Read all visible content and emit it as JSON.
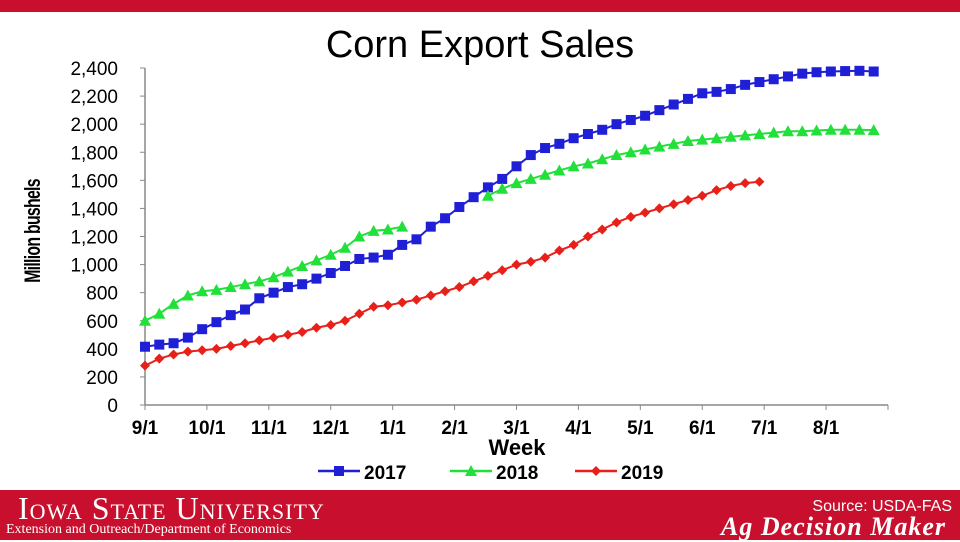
{
  "colors": {
    "bar": "#c8102e",
    "s2017": "#1f1fd6",
    "s2018": "#22e03a",
    "s2019": "#e8201a"
  },
  "footer": {
    "university": "Iowa State University",
    "department": "Extension and Outreach/Department of Economics",
    "source": "Source: USDA-FAS",
    "brand": "Ag Decision Maker"
  },
  "chart_data": {
    "type": "line",
    "title": "Corn Export Sales",
    "xlabel": "Week",
    "ylabel": "Million bushels",
    "ylim": [
      0,
      2400
    ],
    "yticks": [
      "0",
      "200",
      "400",
      "600",
      "800",
      "1,000",
      "1,200",
      "1,400",
      "1,600",
      "1,800",
      "2,000",
      "2,200",
      "2,400"
    ],
    "xticks": [
      "9/1",
      "10/1",
      "11/1",
      "12/1",
      "1/1",
      "2/1",
      "3/1",
      "4/1",
      "5/1",
      "6/1",
      "7/1",
      "8/1"
    ],
    "xrange_weeks": [
      0,
      52
    ],
    "legend_position": "bottom",
    "series": [
      {
        "name": "2017",
        "marker": "square",
        "color": "#1f1fd6",
        "values": [
          415,
          430,
          440,
          480,
          540,
          590,
          640,
          680,
          760,
          800,
          840,
          860,
          900,
          940,
          990,
          1040,
          1050,
          1070,
          1140,
          1180,
          1270,
          1330,
          1410,
          1480,
          1550,
          1610,
          1700,
          1780,
          1830,
          1860,
          1900,
          1930,
          1960,
          2000,
          2030,
          2060,
          2100,
          2140,
          2180,
          2220,
          2230,
          2250,
          2280,
          2300,
          2320,
          2340,
          2360,
          2370,
          2375,
          2378,
          2380,
          2375
        ]
      },
      {
        "name": "2018",
        "marker": "triangle",
        "color": "#22e03a",
        "values": [
          600,
          650,
          720,
          780,
          810,
          820,
          840,
          860,
          880,
          910,
          950,
          990,
          1030,
          1070,
          1120,
          1200,
          1240,
          1250,
          1270,
          null,
          null,
          null,
          null,
          null,
          1490,
          1540,
          1580,
          1610,
          1640,
          1670,
          1700,
          1720,
          1750,
          1780,
          1800,
          1820,
          1840,
          1860,
          1880,
          1890,
          1900,
          1910,
          1920,
          1930,
          1940,
          1950,
          1950,
          1955,
          1960,
          1960,
          1960,
          1958
        ]
      },
      {
        "name": "2019",
        "marker": "diamond",
        "color": "#e8201a",
        "values": [
          280,
          330,
          360,
          380,
          390,
          400,
          420,
          440,
          460,
          480,
          500,
          520,
          550,
          570,
          600,
          650,
          700,
          710,
          730,
          750,
          780,
          810,
          840,
          880,
          920,
          960,
          1000,
          1020,
          1050,
          1100,
          1140,
          1200,
          1250,
          1300,
          1340,
          1370,
          1400,
          1430,
          1460,
          1490,
          1530,
          1560,
          1580,
          1590
        ]
      }
    ]
  }
}
